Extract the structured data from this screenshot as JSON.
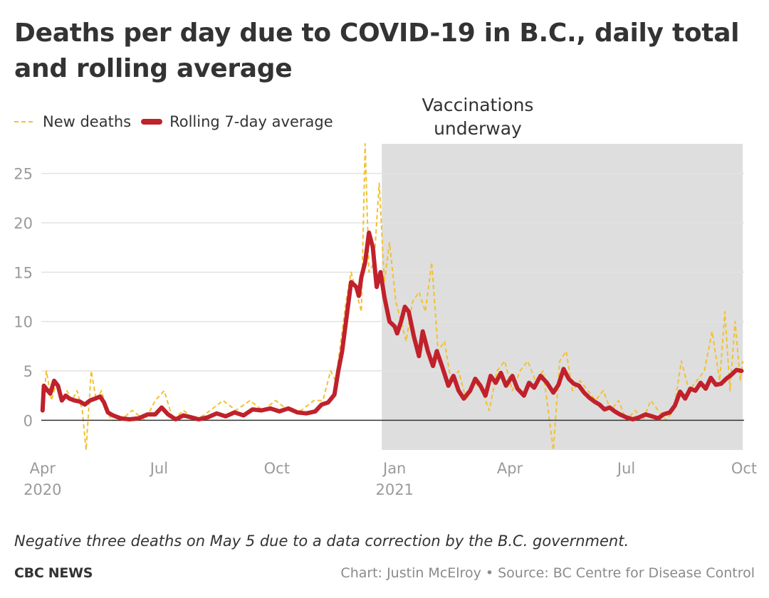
{
  "title": "Deaths per day due to COVID-19 in B.C., daily total and rolling average",
  "note": "Negative three deaths on May 5 due to a data correction by the B.C. government.",
  "footer": {
    "brand": "CBC NEWS",
    "credit": "Chart: Justin McElroy • Source: BC Centre for Disease Control"
  },
  "colors": {
    "daily": "#f2c12e",
    "average": "#c0212b",
    "shade": "#dedede",
    "grid": "#e2e2e2",
    "zero_line": "#333333",
    "tick": "#9a9a9a"
  },
  "chart_data": {
    "type": "line",
    "x_type": "date",
    "xlim": [
      "2020-03-31",
      "2021-10-01"
    ],
    "ylim": [
      -3,
      28
    ],
    "yticks": [
      0,
      5,
      10,
      15,
      20,
      25
    ],
    "grid": true,
    "legend_position": "top-left",
    "x_ticks": [
      {
        "date": "2020-04-01",
        "label": "Apr",
        "sub": "2020"
      },
      {
        "date": "2020-07-01",
        "label": "Jul",
        "sub": ""
      },
      {
        "date": "2020-10-01",
        "label": "Oct",
        "sub": ""
      },
      {
        "date": "2021-01-01",
        "label": "Jan",
        "sub": "2021"
      },
      {
        "date": "2021-04-01",
        "label": "Apr",
        "sub": ""
      },
      {
        "date": "2021-07-01",
        "label": "Jul",
        "sub": ""
      },
      {
        "date": "2021-10-01",
        "label": "Oct",
        "sub": ""
      }
    ],
    "shaded_region": {
      "label_line1": "Vaccinations",
      "label_line2": "underway",
      "start": "2020-12-22",
      "end": "2021-09-30"
    },
    "series": [
      {
        "name": "New deaths",
        "style": "dashed",
        "points": [
          [
            "2020-04-01",
            1
          ],
          [
            "2020-04-04",
            5
          ],
          [
            "2020-04-08",
            2
          ],
          [
            "2020-04-12",
            4
          ],
          [
            "2020-04-16",
            2
          ],
          [
            "2020-04-20",
            3
          ],
          [
            "2020-04-24",
            2
          ],
          [
            "2020-04-28",
            3
          ],
          [
            "2020-05-02",
            1
          ],
          [
            "2020-05-05",
            -3
          ],
          [
            "2020-05-09",
            5
          ],
          [
            "2020-05-13",
            2
          ],
          [
            "2020-05-17",
            3
          ],
          [
            "2020-05-21",
            1
          ],
          [
            "2020-05-25",
            0
          ],
          [
            "2020-06-01",
            0
          ],
          [
            "2020-06-10",
            1
          ],
          [
            "2020-06-20",
            0
          ],
          [
            "2020-06-28",
            2
          ],
          [
            "2020-07-05",
            3
          ],
          [
            "2020-07-12",
            0
          ],
          [
            "2020-07-20",
            1
          ],
          [
            "2020-07-30",
            0
          ],
          [
            "2020-08-10",
            1
          ],
          [
            "2020-08-20",
            2
          ],
          [
            "2020-08-30",
            1
          ],
          [
            "2020-09-10",
            2
          ],
          [
            "2020-09-20",
            1
          ],
          [
            "2020-09-30",
            2
          ],
          [
            "2020-10-10",
            1
          ],
          [
            "2020-10-20",
            1
          ],
          [
            "2020-10-30",
            2
          ],
          [
            "2020-11-06",
            2
          ],
          [
            "2020-11-12",
            5
          ],
          [
            "2020-11-16",
            4
          ],
          [
            "2020-11-20",
            8
          ],
          [
            "2020-11-24",
            12
          ],
          [
            "2020-11-28",
            15
          ],
          [
            "2020-12-02",
            13
          ],
          [
            "2020-12-06",
            11
          ],
          [
            "2020-12-09",
            28
          ],
          [
            "2020-12-12",
            15
          ],
          [
            "2020-12-16",
            16
          ],
          [
            "2020-12-20",
            24
          ],
          [
            "2020-12-24",
            14
          ],
          [
            "2020-12-28",
            18
          ],
          [
            "2021-01-02",
            12
          ],
          [
            "2021-01-06",
            10
          ],
          [
            "2021-01-10",
            8
          ],
          [
            "2021-01-15",
            12
          ],
          [
            "2021-01-20",
            13
          ],
          [
            "2021-01-25",
            11
          ],
          [
            "2021-01-30",
            16
          ],
          [
            "2021-02-04",
            7
          ],
          [
            "2021-02-09",
            8
          ],
          [
            "2021-02-14",
            4
          ],
          [
            "2021-02-20",
            5
          ],
          [
            "2021-02-26",
            2
          ],
          [
            "2021-03-04",
            4
          ],
          [
            "2021-03-10",
            3
          ],
          [
            "2021-03-16",
            1
          ],
          [
            "2021-03-22",
            5
          ],
          [
            "2021-03-28",
            6
          ],
          [
            "2021-04-03",
            3
          ],
          [
            "2021-04-09",
            5
          ],
          [
            "2021-04-15",
            6
          ],
          [
            "2021-04-21",
            4
          ],
          [
            "2021-04-27",
            5
          ],
          [
            "2021-05-05",
            -3
          ],
          [
            "2021-05-10",
            6
          ],
          [
            "2021-05-15",
            7
          ],
          [
            "2021-05-20",
            3
          ],
          [
            "2021-05-26",
            4
          ],
          [
            "2021-06-01",
            3
          ],
          [
            "2021-06-07",
            2
          ],
          [
            "2021-06-13",
            3
          ],
          [
            "2021-06-19",
            1
          ],
          [
            "2021-06-25",
            2
          ],
          [
            "2021-07-01",
            0
          ],
          [
            "2021-07-08",
            1
          ],
          [
            "2021-07-14",
            0
          ],
          [
            "2021-07-20",
            2
          ],
          [
            "2021-07-26",
            1
          ],
          [
            "2021-08-01",
            0
          ],
          [
            "2021-08-07",
            1
          ],
          [
            "2021-08-13",
            6
          ],
          [
            "2021-08-19",
            3
          ],
          [
            "2021-08-25",
            4
          ],
          [
            "2021-08-31",
            5
          ],
          [
            "2021-09-06",
            9
          ],
          [
            "2021-09-12",
            4
          ],
          [
            "2021-09-16",
            11
          ],
          [
            "2021-09-20",
            3
          ],
          [
            "2021-09-24",
            10
          ],
          [
            "2021-09-28",
            4
          ],
          [
            "2021-09-30",
            6
          ]
        ]
      },
      {
        "name": "Rolling 7-day average",
        "style": "solid",
        "points": [
          [
            "2020-04-01",
            1
          ],
          [
            "2020-04-02",
            3.5
          ],
          [
            "2020-04-05",
            3
          ],
          [
            "2020-04-07",
            2.7
          ],
          [
            "2020-04-10",
            4
          ],
          [
            "2020-04-13",
            3.5
          ],
          [
            "2020-04-16",
            2
          ],
          [
            "2020-04-19",
            2.5
          ],
          [
            "2020-04-22",
            2.2
          ],
          [
            "2020-04-26",
            2
          ],
          [
            "2020-04-30",
            1.9
          ],
          [
            "2020-05-04",
            1.6
          ],
          [
            "2020-05-08",
            2
          ],
          [
            "2020-05-12",
            2.2
          ],
          [
            "2020-05-16",
            2.4
          ],
          [
            "2020-05-19",
            1.8
          ],
          [
            "2020-05-22",
            0.8
          ],
          [
            "2020-05-26",
            0.5
          ],
          [
            "2020-06-01",
            0.2
          ],
          [
            "2020-06-08",
            0.1
          ],
          [
            "2020-06-15",
            0.2
          ],
          [
            "2020-06-22",
            0.6
          ],
          [
            "2020-06-28",
            0.6
          ],
          [
            "2020-07-03",
            1.3
          ],
          [
            "2020-07-08",
            0.6
          ],
          [
            "2020-07-14",
            0.1
          ],
          [
            "2020-07-20",
            0.5
          ],
          [
            "2020-07-26",
            0.3
          ],
          [
            "2020-08-01",
            0.1
          ],
          [
            "2020-08-08",
            0.3
          ],
          [
            "2020-08-15",
            0.7
          ],
          [
            "2020-08-22",
            0.4
          ],
          [
            "2020-08-29",
            0.8
          ],
          [
            "2020-09-05",
            0.5
          ],
          [
            "2020-09-12",
            1.1
          ],
          [
            "2020-09-19",
            1
          ],
          [
            "2020-09-26",
            1.2
          ],
          [
            "2020-10-03",
            0.9
          ],
          [
            "2020-10-10",
            1.2
          ],
          [
            "2020-10-17",
            0.8
          ],
          [
            "2020-10-24",
            0.7
          ],
          [
            "2020-10-31",
            0.9
          ],
          [
            "2020-11-05",
            1.6
          ],
          [
            "2020-11-10",
            1.8
          ],
          [
            "2020-11-15",
            2.6
          ],
          [
            "2020-11-18",
            5
          ],
          [
            "2020-11-21",
            7
          ],
          [
            "2020-11-25",
            11
          ],
          [
            "2020-11-28",
            14
          ],
          [
            "2020-12-02",
            13.5
          ],
          [
            "2020-12-04",
            12.6
          ],
          [
            "2020-12-06",
            14.5
          ],
          [
            "2020-12-09",
            16
          ],
          [
            "2020-12-12",
            19
          ],
          [
            "2020-12-15",
            17.5
          ],
          [
            "2020-12-18",
            13.5
          ],
          [
            "2020-12-21",
            15
          ],
          [
            "2020-12-24",
            12.5
          ],
          [
            "2020-12-28",
            10
          ],
          [
            "2021-01-01",
            9.5
          ],
          [
            "2021-01-03",
            8.8
          ],
          [
            "2021-01-06",
            10
          ],
          [
            "2021-01-09",
            11.5
          ],
          [
            "2021-01-12",
            11
          ],
          [
            "2021-01-16",
            8.5
          ],
          [
            "2021-01-20",
            6.5
          ],
          [
            "2021-01-23",
            9
          ],
          [
            "2021-01-27",
            7
          ],
          [
            "2021-01-31",
            5.5
          ],
          [
            "2021-02-03",
            7
          ],
          [
            "2021-02-07",
            5.5
          ],
          [
            "2021-02-12",
            3.5
          ],
          [
            "2021-02-16",
            4.5
          ],
          [
            "2021-02-20",
            3
          ],
          [
            "2021-02-24",
            2.2
          ],
          [
            "2021-03-01",
            3
          ],
          [
            "2021-03-05",
            4.2
          ],
          [
            "2021-03-09",
            3.5
          ],
          [
            "2021-03-13",
            2.5
          ],
          [
            "2021-03-17",
            4.5
          ],
          [
            "2021-03-21",
            3.8
          ],
          [
            "2021-03-25",
            4.8
          ],
          [
            "2021-03-29",
            3.5
          ],
          [
            "2021-04-03",
            4.5
          ],
          [
            "2021-04-07",
            3.2
          ],
          [
            "2021-04-12",
            2.5
          ],
          [
            "2021-04-16",
            3.8
          ],
          [
            "2021-04-20",
            3.3
          ],
          [
            "2021-04-25",
            4.5
          ],
          [
            "2021-04-30",
            3.8
          ],
          [
            "2021-05-05",
            2.8
          ],
          [
            "2021-05-09",
            3.6
          ],
          [
            "2021-05-13",
            5.2
          ],
          [
            "2021-05-17",
            4.2
          ],
          [
            "2021-05-21",
            3.7
          ],
          [
            "2021-05-25",
            3.5
          ],
          [
            "2021-05-29",
            2.8
          ],
          [
            "2021-06-02",
            2.3
          ],
          [
            "2021-06-06",
            1.9
          ],
          [
            "2021-06-10",
            1.6
          ],
          [
            "2021-06-14",
            1.1
          ],
          [
            "2021-06-18",
            1.3
          ],
          [
            "2021-06-22",
            0.9
          ],
          [
            "2021-06-26",
            0.6
          ],
          [
            "2021-07-01",
            0.3
          ],
          [
            "2021-07-06",
            0.1
          ],
          [
            "2021-07-11",
            0.3
          ],
          [
            "2021-07-16",
            0.6
          ],
          [
            "2021-07-21",
            0.4
          ],
          [
            "2021-07-26",
            0.2
          ],
          [
            "2021-07-30",
            0.6
          ],
          [
            "2021-08-04",
            0.8
          ],
          [
            "2021-08-08",
            1.5
          ],
          [
            "2021-08-12",
            2.9
          ],
          [
            "2021-08-16",
            2.2
          ],
          [
            "2021-08-20",
            3.2
          ],
          [
            "2021-08-24",
            3
          ],
          [
            "2021-08-28",
            3.8
          ],
          [
            "2021-09-01",
            3.2
          ],
          [
            "2021-09-05",
            4.3
          ],
          [
            "2021-09-09",
            3.6
          ],
          [
            "2021-09-13",
            3.7
          ],
          [
            "2021-09-17",
            4.2
          ],
          [
            "2021-09-21",
            4.6
          ],
          [
            "2021-09-25",
            5.1
          ],
          [
            "2021-09-29",
            5
          ]
        ]
      }
    ]
  }
}
